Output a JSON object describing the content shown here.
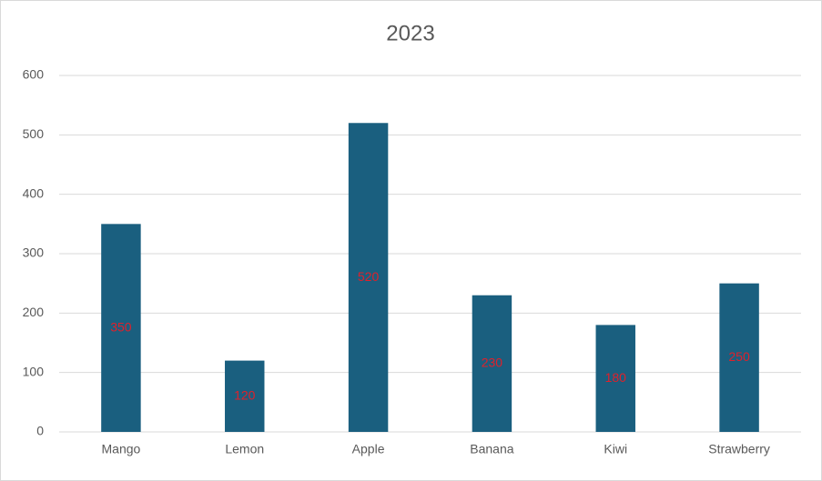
{
  "chart_data": {
    "type": "bar",
    "title": "2023",
    "categories": [
      "Mango",
      "Lemon",
      "Apple",
      "Banana",
      "Kiwi",
      "Strawberry"
    ],
    "values": [
      350,
      120,
      520,
      230,
      180,
      250
    ],
    "color": "#1a5f7f",
    "label_color": "#e0202a",
    "ylim": [
      0,
      600
    ],
    "yticks": [
      0,
      100,
      200,
      300,
      400,
      500,
      600
    ],
    "grid": true
  }
}
